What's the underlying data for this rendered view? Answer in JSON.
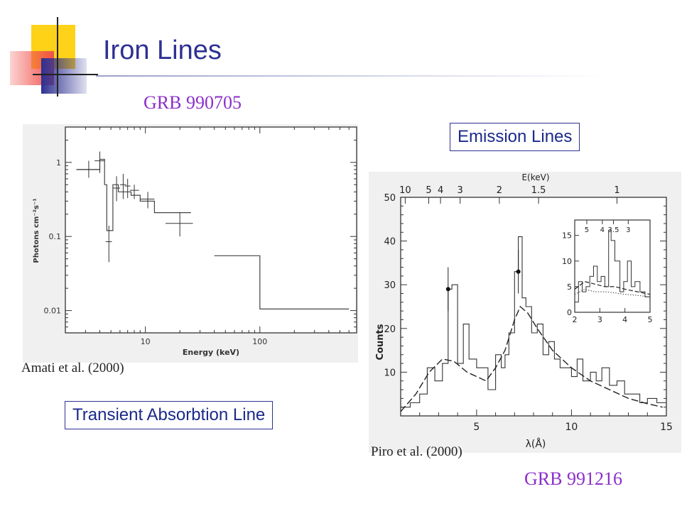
{
  "slide": {
    "title": "Iron Lines",
    "grb_top": "GRB 990705",
    "grb_bottom": "GRB 991216",
    "emission_label": "Emission Lines",
    "absorption_label": "Transient Absorbtion Line",
    "cite_left": "Amati et al. (2000)",
    "cite_right": "Piro et al. (2000)",
    "colors": {
      "title": "#2E3192",
      "grb": "#8B2FC9",
      "box": "#2E3192",
      "logo_yellow": "#FFD21A",
      "logo_red": "#F0504B",
      "logo_blue": "#2E3192"
    }
  },
  "chart_data": [
    {
      "type": "step",
      "ylabel": "Photons cm⁻²s⁻¹",
      "xlabel": "Energy (keV)",
      "xscale": "log",
      "yscale": "log",
      "xlim": [
        2,
        700
      ],
      "ylim": [
        0.005,
        3
      ],
      "x_ticks": [
        {
          "v": 10,
          "label": "10"
        },
        {
          "v": 100,
          "label": "100"
        }
      ],
      "y_ticks": [
        {
          "v": 1,
          "label": "1"
        },
        {
          "v": 0.1,
          "label": "0.1"
        },
        {
          "v": 0.01,
          "label": "0.01"
        }
      ],
      "model_step": [
        [
          2.5,
          0.8
        ],
        [
          4,
          0.8
        ],
        [
          4,
          1.1
        ],
        [
          4.4,
          1.1
        ],
        [
          4.4,
          0.5
        ],
        [
          4.6,
          0.5
        ],
        [
          4.6,
          0.12
        ],
        [
          5.2,
          0.12
        ],
        [
          5.2,
          0.5
        ],
        [
          5.8,
          0.5
        ],
        [
          5.8,
          0.4
        ],
        [
          7.5,
          0.4
        ],
        [
          7.5,
          0.36
        ],
        [
          9,
          0.36
        ],
        [
          9,
          0.3
        ],
        [
          12,
          0.3
        ],
        [
          12,
          0.21
        ],
        [
          25,
          0.21
        ]
      ],
      "model_step2": [
        [
          40,
          0.055
        ],
        [
          100,
          0.055
        ],
        [
          100,
          0.0105
        ],
        [
          600,
          0.0105
        ]
      ],
      "points": [
        {
          "x": 3.2,
          "y": 0.8,
          "xlo": 2.5,
          "xhi": 4.0,
          "ylo": 0.62,
          "yhi": 1.05
        },
        {
          "x": 4.0,
          "y": 1.05,
          "xlo": 3.6,
          "xhi": 4.4,
          "ylo": 0.72,
          "yhi": 1.4
        },
        {
          "x": 4.8,
          "y": 0.085,
          "xlo": 4.5,
          "xhi": 5.1,
          "ylo": 0.045,
          "yhi": 0.14
        },
        {
          "x": 5.6,
          "y": 0.45,
          "xlo": 5.2,
          "xhi": 6.0,
          "ylo": 0.3,
          "yhi": 0.65
        },
        {
          "x": 6.4,
          "y": 0.5,
          "xlo": 6.0,
          "xhi": 6.8,
          "ylo": 0.32,
          "yhi": 0.7
        },
        {
          "x": 7.0,
          "y": 0.48,
          "xlo": 6.6,
          "xhi": 7.4,
          "ylo": 0.33,
          "yhi": 0.6
        },
        {
          "x": 8.0,
          "y": 0.42,
          "xlo": 7.3,
          "xhi": 8.8,
          "ylo": 0.32,
          "yhi": 0.5
        },
        {
          "x": 10.5,
          "y": 0.32,
          "xlo": 9.0,
          "xhi": 12.0,
          "ylo": 0.24,
          "yhi": 0.4
        },
        {
          "x": 20.0,
          "y": 0.15,
          "xlo": 15.0,
          "xhi": 26.0,
          "ylo": 0.1,
          "yhi": 0.21
        }
      ]
    },
    {
      "type": "step",
      "ylabel": "Counts",
      "xlabel": "λ(Å)",
      "top_axis_label": "E(keV)",
      "xlim": [
        1,
        15
      ],
      "ylim": [
        0,
        50
      ],
      "x_ticks": [
        {
          "v": 5,
          "label": "5"
        },
        {
          "v": 10,
          "label": "10"
        },
        {
          "v": 15,
          "label": "15"
        }
      ],
      "y_ticks": [
        {
          "v": 10,
          "label": "10"
        },
        {
          "v": 20,
          "label": "20"
        },
        {
          "v": 30,
          "label": "30"
        },
        {
          "v": 40,
          "label": "40"
        },
        {
          "v": 50,
          "label": "50"
        }
      ],
      "top_ticks": [
        {
          "kev": 10,
          "label": "10"
        },
        {
          "kev": 5,
          "label": "5"
        },
        {
          "kev": 4,
          "label": "4"
        },
        {
          "kev": 3,
          "label": "3"
        },
        {
          "kev": 2,
          "label": "2"
        },
        {
          "kev": 1.5,
          "label": "1.5"
        },
        {
          "kev": 1,
          "label": "1"
        }
      ],
      "counts_step": [
        [
          1,
          2
        ],
        [
          1.5,
          3
        ],
        [
          2,
          5
        ],
        [
          2.4,
          11
        ],
        [
          2.8,
          8
        ],
        [
          3.2,
          12
        ],
        [
          3.5,
          29
        ],
        [
          3.7,
          30
        ],
        [
          4.0,
          12
        ],
        [
          4.3,
          21
        ],
        [
          4.6,
          13
        ],
        [
          5.0,
          11
        ],
        [
          5.3,
          11
        ],
        [
          5.6,
          6
        ],
        [
          6.0,
          14
        ],
        [
          6.3,
          11
        ],
        [
          6.5,
          14
        ],
        [
          6.7,
          19
        ],
        [
          7.0,
          33
        ],
        [
          7.2,
          41
        ],
        [
          7.4,
          27
        ],
        [
          7.6,
          25
        ],
        [
          7.9,
          19
        ],
        [
          8.2,
          21
        ],
        [
          8.5,
          14
        ],
        [
          8.8,
          17
        ],
        [
          9.1,
          13
        ],
        [
          9.4,
          11
        ],
        [
          9.7,
          11
        ],
        [
          10.0,
          9
        ],
        [
          10.3,
          13
        ],
        [
          10.6,
          8
        ],
        [
          11.0,
          10
        ],
        [
          11.3,
          8
        ],
        [
          11.6,
          11
        ],
        [
          12.0,
          7
        ],
        [
          12.4,
          8
        ],
        [
          12.8,
          5
        ],
        [
          13.2,
          5
        ],
        [
          13.6,
          3
        ],
        [
          14.0,
          4
        ],
        [
          14.5,
          3
        ]
      ],
      "model_curve": [
        [
          1,
          1
        ],
        [
          1.8,
          5
        ],
        [
          2.5,
          10
        ],
        [
          3.2,
          13
        ],
        [
          3.8,
          12.5
        ],
        [
          4.5,
          10
        ],
        [
          5.0,
          9
        ],
        [
          5.5,
          8
        ],
        [
          6.0,
          11
        ],
        [
          6.5,
          15
        ],
        [
          7.0,
          22
        ],
        [
          7.3,
          25
        ],
        [
          7.7,
          23.5
        ],
        [
          8.2,
          20
        ],
        [
          9.0,
          15
        ],
        [
          10.0,
          11
        ],
        [
          11.0,
          8
        ],
        [
          12.0,
          6
        ],
        [
          13.0,
          4
        ],
        [
          14.0,
          2.8
        ],
        [
          14.8,
          2
        ]
      ],
      "line_points": [
        {
          "x": 3.5,
          "y": 29,
          "ylo": 24,
          "yhi": 34
        },
        {
          "x": 7.2,
          "y": 33,
          "ylo": 28,
          "yhi": 38
        }
      ],
      "inset": {
        "xlim": [
          2,
          5
        ],
        "ylim": [
          0,
          18
        ],
        "x_ticks": [
          {
            "v": 2,
            "label": "2"
          },
          {
            "v": 3,
            "label": "3"
          },
          {
            "v": 4,
            "label": "4"
          },
          {
            "v": 5,
            "label": "5"
          }
        ],
        "y_ticks": [
          {
            "v": 0,
            "label": "0"
          },
          {
            "v": 5,
            "label": "5"
          },
          {
            "v": 10,
            "label": "10"
          },
          {
            "v": 15,
            "label": "15"
          }
        ],
        "top_ticks": [
          {
            "kev": 5,
            "label": "5"
          },
          {
            "kev": 4,
            "label": "4"
          },
          {
            "kev": 3.5,
            "label": "3.5"
          },
          {
            "kev": 3,
            "label": "3"
          }
        ],
        "counts_step": [
          [
            2,
            2
          ],
          [
            2.15,
            6
          ],
          [
            2.3,
            4
          ],
          [
            2.45,
            5
          ],
          [
            2.6,
            7
          ],
          [
            2.75,
            9
          ],
          [
            2.9,
            6
          ],
          [
            3.05,
            7
          ],
          [
            3.2,
            5
          ],
          [
            3.35,
            16
          ],
          [
            3.45,
            14
          ],
          [
            3.6,
            10
          ],
          [
            3.8,
            4
          ],
          [
            3.95,
            6
          ],
          [
            4.1,
            10
          ],
          [
            4.25,
            5
          ],
          [
            4.4,
            6
          ],
          [
            4.6,
            4
          ],
          [
            4.8,
            3
          ]
        ],
        "model_dash": [
          [
            2,
            4.5
          ],
          [
            2.4,
            6
          ],
          [
            2.8,
            5.5
          ],
          [
            3.2,
            5
          ],
          [
            3.6,
            5
          ],
          [
            4.0,
            4.5
          ],
          [
            4.5,
            4
          ],
          [
            5,
            3.5
          ]
        ],
        "model_dot": [
          [
            2,
            3.5
          ],
          [
            2.4,
            4.5
          ],
          [
            2.8,
            4
          ],
          [
            3.2,
            4
          ],
          [
            3.6,
            3.8
          ],
          [
            4.0,
            3.5
          ],
          [
            4.5,
            3.3
          ],
          [
            5,
            3
          ]
        ]
      }
    }
  ]
}
